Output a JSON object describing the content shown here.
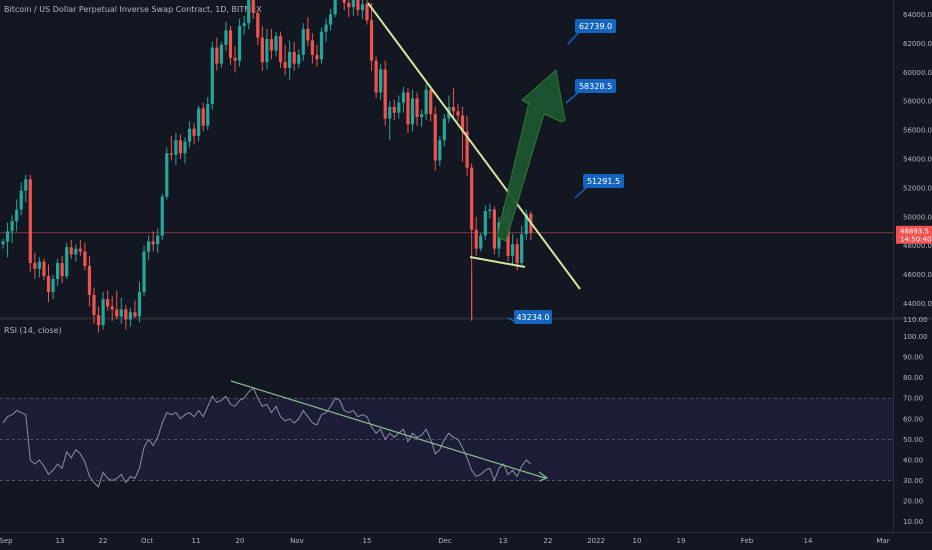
{
  "header": {
    "title": "Bitcoin / US Dollar Perpetual Inverse Swap Contract, 1D, BITMEX"
  },
  "rsi": {
    "label": "RSI (14, close)"
  },
  "colors": {
    "background": "#131722",
    "up": "#26a69a",
    "down": "#ef5350",
    "trendline_price": "#d4e5a0",
    "trendline_rsi": "#8fbc8f",
    "arrow": "#1e5631",
    "callout": "#1565c0",
    "rsi_line": "#8a8fa0",
    "rsi_band": "#1e1f3a",
    "current_price_tag": "#ef5350"
  },
  "chart_data": [
    {
      "type": "candlestick",
      "title": "Bitcoin / US Dollar Perpetual Inverse Swap Contract, 1D, BITMEX",
      "x_tick_labels": [
        "Sep",
        "13",
        "22",
        "Oct",
        "11",
        "20",
        "Nov",
        "15",
        "Dec",
        "13",
        "22",
        "2022",
        "10",
        "19",
        "Feb",
        "14",
        "Mar"
      ],
      "y_tick_labels": [
        "44000.0",
        "46000.0",
        "48000.0",
        "50000.0",
        "52000.0",
        "54000.0",
        "56000.0",
        "58000.0",
        "60000.0",
        "62000.0",
        "64000.0"
      ],
      "ylim": [
        43000,
        65000
      ],
      "current_price_label": "48893.5",
      "countdown_label": "14:50:40",
      "current_price": 48893.5,
      "annotations": {
        "targets": [
          "62739.0",
          "58328.5",
          "51291.5"
        ],
        "low_label": "43234.0",
        "top_partial_label": "110.00"
      },
      "ohlc": [
        [
          48100,
          48500,
          47800,
          48300
        ],
        [
          48300,
          49600,
          47200,
          49000
        ],
        [
          49000,
          50100,
          48200,
          49700
        ],
        [
          49700,
          51200,
          49000,
          50500
        ],
        [
          50500,
          52400,
          50100,
          51800
        ],
        [
          51800,
          52900,
          51000,
          52600
        ],
        [
          52600,
          52900,
          46200,
          46800
        ],
        [
          46800,
          47500,
          45700,
          46400
        ],
        [
          46400,
          47200,
          45800,
          46900
        ],
        [
          46900,
          47100,
          45600,
          45900
        ],
        [
          45900,
          46700,
          44100,
          44800
        ],
        [
          44800,
          46000,
          44300,
          45700
        ],
        [
          45700,
          47100,
          45200,
          46800
        ],
        [
          46800,
          47300,
          45400,
          45900
        ],
        [
          45900,
          48200,
          45700,
          47900
        ],
        [
          47900,
          48400,
          47100,
          47400
        ],
        [
          47400,
          48100,
          46900,
          47800
        ],
        [
          47800,
          48400,
          47300,
          47600
        ],
        [
          47600,
          48200,
          46300,
          46600
        ],
        [
          46600,
          47300,
          43800,
          44600
        ],
        [
          44600,
          45100,
          42600,
          43200
        ],
        [
          43200,
          43800,
          42000,
          42500
        ],
        [
          42500,
          44800,
          42200,
          44300
        ],
        [
          44300,
          44900,
          43500,
          43800
        ],
        [
          43800,
          44500,
          42800,
          43600
        ],
        [
          43600,
          44900,
          42900,
          43100
        ],
        [
          43100,
          44400,
          42600,
          43600
        ],
        [
          43600,
          43900,
          42200,
          42900
        ],
        [
          42900,
          43700,
          42400,
          43400
        ],
        [
          43400,
          44200,
          43000,
          43100
        ],
        [
          43100,
          45500,
          42700,
          44800
        ],
        [
          44800,
          48000,
          44500,
          47600
        ],
        [
          47600,
          48700,
          47000,
          48300
        ],
        [
          48300,
          49000,
          47600,
          48100
        ],
        [
          48100,
          49200,
          47500,
          48700
        ],
        [
          48700,
          51600,
          48400,
          51400
        ],
        [
          51400,
          54800,
          51200,
          54400
        ],
        [
          54400,
          55600,
          53900,
          54300
        ],
        [
          54300,
          55800,
          53600,
          55300
        ],
        [
          55300,
          55700,
          54000,
          54400
        ],
        [
          54400,
          55500,
          53700,
          55200
        ],
        [
          55200,
          56600,
          54800,
          56100
        ],
        [
          56100,
          56500,
          55000,
          55600
        ],
        [
          55600,
          57700,
          55200,
          57500
        ],
        [
          57500,
          57900,
          55900,
          56300
        ],
        [
          56300,
          58300,
          56000,
          57800
        ],
        [
          57800,
          62100,
          57400,
          61700
        ],
        [
          61700,
          62400,
          60100,
          60600
        ],
        [
          60600,
          62100,
          60300,
          61900
        ],
        [
          61900,
          63500,
          61500,
          62900
        ],
        [
          62900,
          63200,
          60500,
          61000
        ],
        [
          61000,
          61800,
          60000,
          60800
        ],
        [
          60800,
          63700,
          60400,
          63200
        ],
        [
          63200,
          63900,
          62600,
          63400
        ],
        [
          63400,
          66600,
          63000,
          66000
        ],
        [
          66000,
          67000,
          63700,
          64100
        ],
        [
          64100,
          64300,
          61900,
          62400
        ],
        [
          62400,
          63200,
          60100,
          60700
        ],
        [
          60700,
          63000,
          60200,
          62300
        ],
        [
          62300,
          63000,
          60900,
          61500
        ],
        [
          61500,
          62800,
          61100,
          62500
        ],
        [
          62500,
          62800,
          60300,
          60700
        ],
        [
          60700,
          61900,
          59800,
          60300
        ],
        [
          60300,
          62200,
          59500,
          61400
        ],
        [
          61400,
          62100,
          60100,
          60600
        ],
        [
          60600,
          61600,
          60300,
          61200
        ],
        [
          61200,
          63400,
          60800,
          63000
        ],
        [
          63000,
          63800,
          61800,
          62200
        ],
        [
          62200,
          62700,
          60600,
          61200
        ],
        [
          61200,
          61900,
          60400,
          60900
        ],
        [
          60900,
          63100,
          60600,
          62800
        ],
        [
          62800,
          63700,
          62100,
          63300
        ],
        [
          63300,
          64400,
          62900,
          64000
        ],
        [
          64000,
          66800,
          63800,
          66300
        ],
        [
          66300,
          67400,
          65500,
          66000
        ],
        [
          66000,
          67200,
          64300,
          64800
        ],
        [
          64800,
          65500,
          63800,
          64500
        ],
        [
          64500,
          65600,
          63900,
          65100
        ],
        [
          65100,
          65700,
          63900,
          64300
        ],
        [
          64300,
          65200,
          63700,
          64700
        ],
        [
          64700,
          65200,
          63300,
          63600
        ],
        [
          63600,
          64800,
          60100,
          60800
        ],
        [
          60800,
          61100,
          58200,
          58600
        ],
        [
          58600,
          60600,
          58100,
          60200
        ],
        [
          60200,
          60800,
          56300,
          56800
        ],
        [
          56800,
          58000,
          55300,
          57600
        ],
        [
          57600,
          58100,
          56700,
          57200
        ],
        [
          57200,
          58400,
          56800,
          57900
        ],
        [
          57900,
          59000,
          57200,
          58600
        ],
        [
          58600,
          58900,
          55800,
          56400
        ],
        [
          56400,
          58800,
          55900,
          58200
        ],
        [
          58200,
          58600,
          56300,
          56900
        ],
        [
          56900,
          57400,
          56200,
          57100
        ],
        [
          57100,
          59200,
          56700,
          58800
        ],
        [
          58800,
          59000,
          56600,
          57100
        ],
        [
          57100,
          57600,
          53200,
          53900
        ],
        [
          53900,
          55600,
          53500,
          55300
        ],
        [
          55300,
          57100,
          54900,
          56800
        ],
        [
          56800,
          58400,
          56500,
          57600
        ],
        [
          57600,
          58900,
          56900,
          57300
        ],
        [
          57300,
          57800,
          56600,
          57000
        ],
        [
          57000,
          57600,
          53800,
          55900
        ],
        [
          55900,
          57000,
          52800,
          53400
        ],
        [
          53400,
          53700,
          42800,
          49100
        ],
        [
          49100,
          50000,
          47300,
          47800
        ],
        [
          47800,
          48900,
          47600,
          48700
        ],
        [
          48700,
          50800,
          48400,
          50400
        ],
        [
          50400,
          50900,
          49900,
          50500
        ],
        [
          50500,
          50700,
          47400,
          47800
        ],
        [
          47800,
          50000,
          47200,
          49600
        ],
        [
          49600,
          50700,
          49300,
          50300
        ],
        [
          50300,
          50500,
          46900,
          47300
        ],
        [
          47300,
          48800,
          46700,
          48100
        ],
        [
          48100,
          48500,
          46300,
          46800
        ],
        [
          46800,
          49400,
          46600,
          48800
        ],
        [
          48800,
          50500,
          48400,
          50200
        ],
        [
          50200,
          50400,
          48400,
          48900
        ]
      ]
    },
    {
      "type": "line",
      "title": "RSI (14, close)",
      "y_tick_labels": [
        "10.00",
        "20.00",
        "30.00",
        "40.00",
        "50.00",
        "60.00",
        "70.00",
        "80.00",
        "90.00",
        "100.00"
      ],
      "ylim": [
        5,
        108
      ],
      "band": [
        30,
        70
      ],
      "midline": 50,
      "series": [
        {
          "values": [
            58,
            61,
            62,
            64,
            63,
            62,
            40,
            38,
            40,
            37,
            33,
            35,
            38,
            36,
            44,
            41,
            45,
            43,
            39,
            32,
            29,
            27,
            34,
            31,
            30,
            31,
            33,
            29,
            32,
            31,
            36,
            46,
            50,
            47,
            51,
            58,
            63,
            62,
            63,
            60,
            62,
            63,
            61,
            64,
            61,
            66,
            71,
            68,
            69,
            71,
            67,
            66,
            69,
            70,
            73,
            75,
            70,
            66,
            67,
            63,
            66,
            61,
            59,
            60,
            58,
            60,
            64,
            61,
            58,
            57,
            62,
            63,
            66,
            70,
            69,
            64,
            63,
            64,
            61,
            62,
            61,
            56,
            53,
            55,
            50,
            53,
            51,
            53,
            55,
            49,
            53,
            51,
            52,
            55,
            50,
            43,
            45,
            50,
            53,
            51,
            50,
            46,
            41,
            35,
            32,
            33,
            35,
            36,
            30,
            36,
            38,
            33,
            35,
            32,
            37,
            40,
            38
          ]
        }
      ]
    }
  ]
}
